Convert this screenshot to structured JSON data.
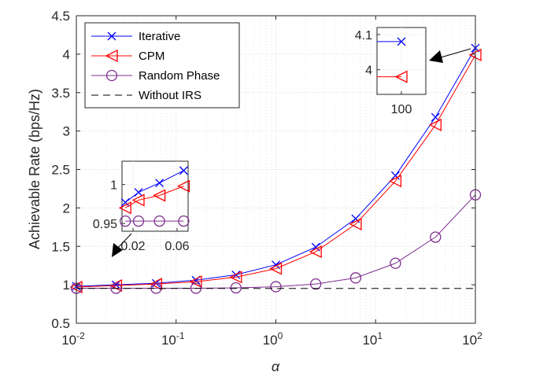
{
  "chart_data": {
    "type": "line",
    "xscale": "log",
    "xlabel": "α",
    "ylabel": "Achievable Rate (bps/Hz)",
    "xlim": [
      0.01,
      100
    ],
    "ylim": [
      0.5,
      4.5
    ],
    "grid": true,
    "legend_position": "top-left",
    "x_ticks": [
      {
        "base": "10",
        "exp": "-2"
      },
      {
        "base": "10",
        "exp": "-1"
      },
      {
        "base": "10",
        "exp": "0"
      },
      {
        "base": "10",
        "exp": "1"
      },
      {
        "base": "10",
        "exp": "2"
      }
    ],
    "y_ticks": [
      "0.5",
      "1",
      "1.5",
      "2",
      "2.5",
      "3",
      "3.5",
      "4",
      "4.5"
    ],
    "x": [
      0.01,
      0.025,
      0.063,
      0.158,
      0.398,
      1,
      2.51,
      6.31,
      15.8,
      39.8,
      100
    ],
    "series": [
      {
        "name": "Iterative",
        "color": "#0000ff",
        "marker": "x",
        "values": [
          0.98,
          1.0,
          1.02,
          1.06,
          1.13,
          1.26,
          1.49,
          1.86,
          2.42,
          3.18,
          4.08
        ]
      },
      {
        "name": "CPM",
        "color": "#ff0000",
        "marker": "triangle-left",
        "values": [
          0.97,
          0.99,
          1.01,
          1.04,
          1.1,
          1.21,
          1.43,
          1.79,
          2.35,
          3.08,
          3.99
        ]
      },
      {
        "name": "Random Phase",
        "color": "#7e2f8e",
        "marker": "circle",
        "values": [
          0.955,
          0.955,
          0.955,
          0.955,
          0.96,
          0.975,
          1.01,
          1.09,
          1.28,
          1.62,
          2.17
        ]
      },
      {
        "name": "Without IRS",
        "color": "#000000",
        "marker": "none",
        "dash": true,
        "values": [
          0.953,
          0.953,
          0.953,
          0.953,
          0.953,
          0.953,
          0.953,
          0.953,
          0.953,
          0.953,
          0.953
        ]
      }
    ],
    "insets": [
      {
        "id": "low",
        "xlim": [
          0.01,
          0.07
        ],
        "ylim": [
          0.94,
          1.03
        ],
        "x_tick_labels": [
          "0.02",
          "0.06"
        ],
        "x_tick_values": [
          0.02,
          0.06
        ],
        "y_tick_labels": [
          "0.95",
          "1"
        ],
        "y_tick_values": [
          0.95,
          1.0
        ],
        "x": [
          0.013,
          0.025,
          0.044,
          0.066
        ],
        "series": [
          {
            "name": "Iterative",
            "values": [
              0.977,
              0.99,
              1.002,
              1.018
            ]
          },
          {
            "name": "CPM",
            "values": [
              0.97,
              0.98,
              0.986,
              0.998
            ]
          },
          {
            "name": "Random Phase",
            "values": [
              0.953,
              0.953,
              0.953,
              0.953
            ]
          }
        ]
      },
      {
        "id": "high",
        "xlim": [
          98,
          102
        ],
        "ylim": [
          3.93,
          4.12
        ],
        "x_tick_labels": [
          "100"
        ],
        "x_tick_values": [
          100
        ],
        "y_tick_labels": [
          "4",
          "4.1"
        ],
        "y_tick_values": [
          4.0,
          4.1
        ],
        "x": [
          100
        ],
        "series": [
          {
            "name": "Iterative",
            "values": [
              4.08
            ]
          },
          {
            "name": "CPM",
            "values": [
              3.98
            ]
          }
        ]
      }
    ]
  }
}
